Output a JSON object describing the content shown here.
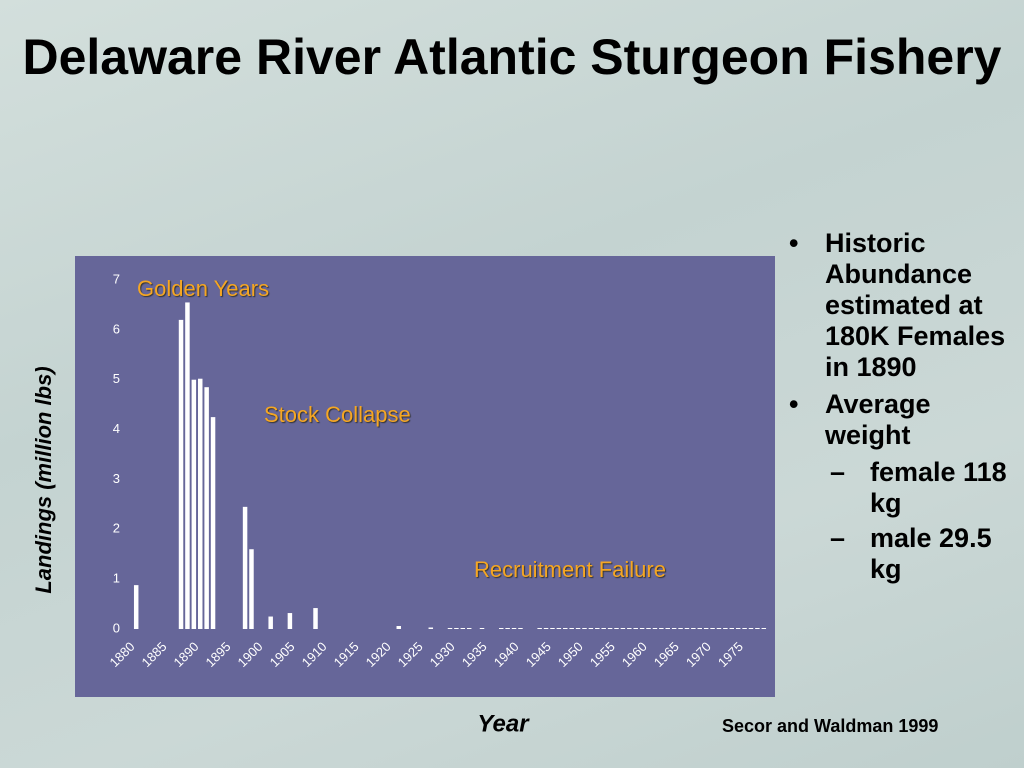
{
  "chart_data": {
    "type": "bar",
    "title": "Delaware River Atlantic Sturgeon Fishery",
    "y_label": "Landings (million lbs)",
    "x_label": "Year",
    "annotations": [
      "Golden Years",
      "Stock Collapse",
      "Recruitment Failure"
    ],
    "x": [
      1880,
      1887,
      1888,
      1889,
      1890,
      1891,
      1892,
      1897,
      1898,
      1901,
      1904,
      1908,
      1921,
      1926,
      1929,
      1930,
      1931,
      1932,
      1934,
      1937,
      1938,
      1939,
      1940,
      1943,
      1944,
      1945,
      1946,
      1947,
      1948,
      1949,
      1950,
      1951,
      1952,
      1953,
      1954,
      1955,
      1956,
      1957,
      1958,
      1959,
      1960,
      1961,
      1962,
      1963,
      1964,
      1965,
      1966,
      1967,
      1968,
      1969,
      1970,
      1971,
      1972,
      1973,
      1974,
      1975,
      1976,
      1977,
      1978
    ],
    "values": [
      0.88,
      6.2,
      6.55,
      5.0,
      5.02,
      4.85,
      4.25,
      2.45,
      1.6,
      0.25,
      0.32,
      0.42,
      0.06,
      0.03,
      0.02,
      0.02,
      0.02,
      0.02,
      0.02,
      0.02,
      0.02,
      0.02,
      0.02,
      0.02,
      0.02,
      0.02,
      0.02,
      0.02,
      0.02,
      0.02,
      0.02,
      0.02,
      0.02,
      0.02,
      0.02,
      0.02,
      0.02,
      0.02,
      0.02,
      0.02,
      0.02,
      0.02,
      0.02,
      0.02,
      0.02,
      0.02,
      0.02,
      0.02,
      0.02,
      0.02,
      0.02,
      0.02,
      0.02,
      0.02,
      0.02,
      0.02,
      0.02,
      0.02,
      0.02
    ],
    "color": "#ffffff",
    "xlim": [
      1880,
      1979
    ],
    "xticks": [
      1880,
      1885,
      1890,
      1895,
      1900,
      1905,
      1910,
      1915,
      1920,
      1925,
      1930,
      1935,
      1940,
      1945,
      1950,
      1955,
      1960,
      1965,
      1970,
      1975
    ],
    "ylim": [
      0,
      7
    ],
    "yticks": [
      0,
      1,
      2,
      3,
      4,
      5,
      6,
      7
    ],
    "grid": false
  },
  "bullets": [
    {
      "text": "Historic Abundance estimated at 180K Females in 1890",
      "sub": []
    },
    {
      "text": "Average weight",
      "sub": [
        "female 118 kg",
        "male 29.5 kg"
      ]
    }
  ],
  "citation": "Secor and Waldman 1999"
}
